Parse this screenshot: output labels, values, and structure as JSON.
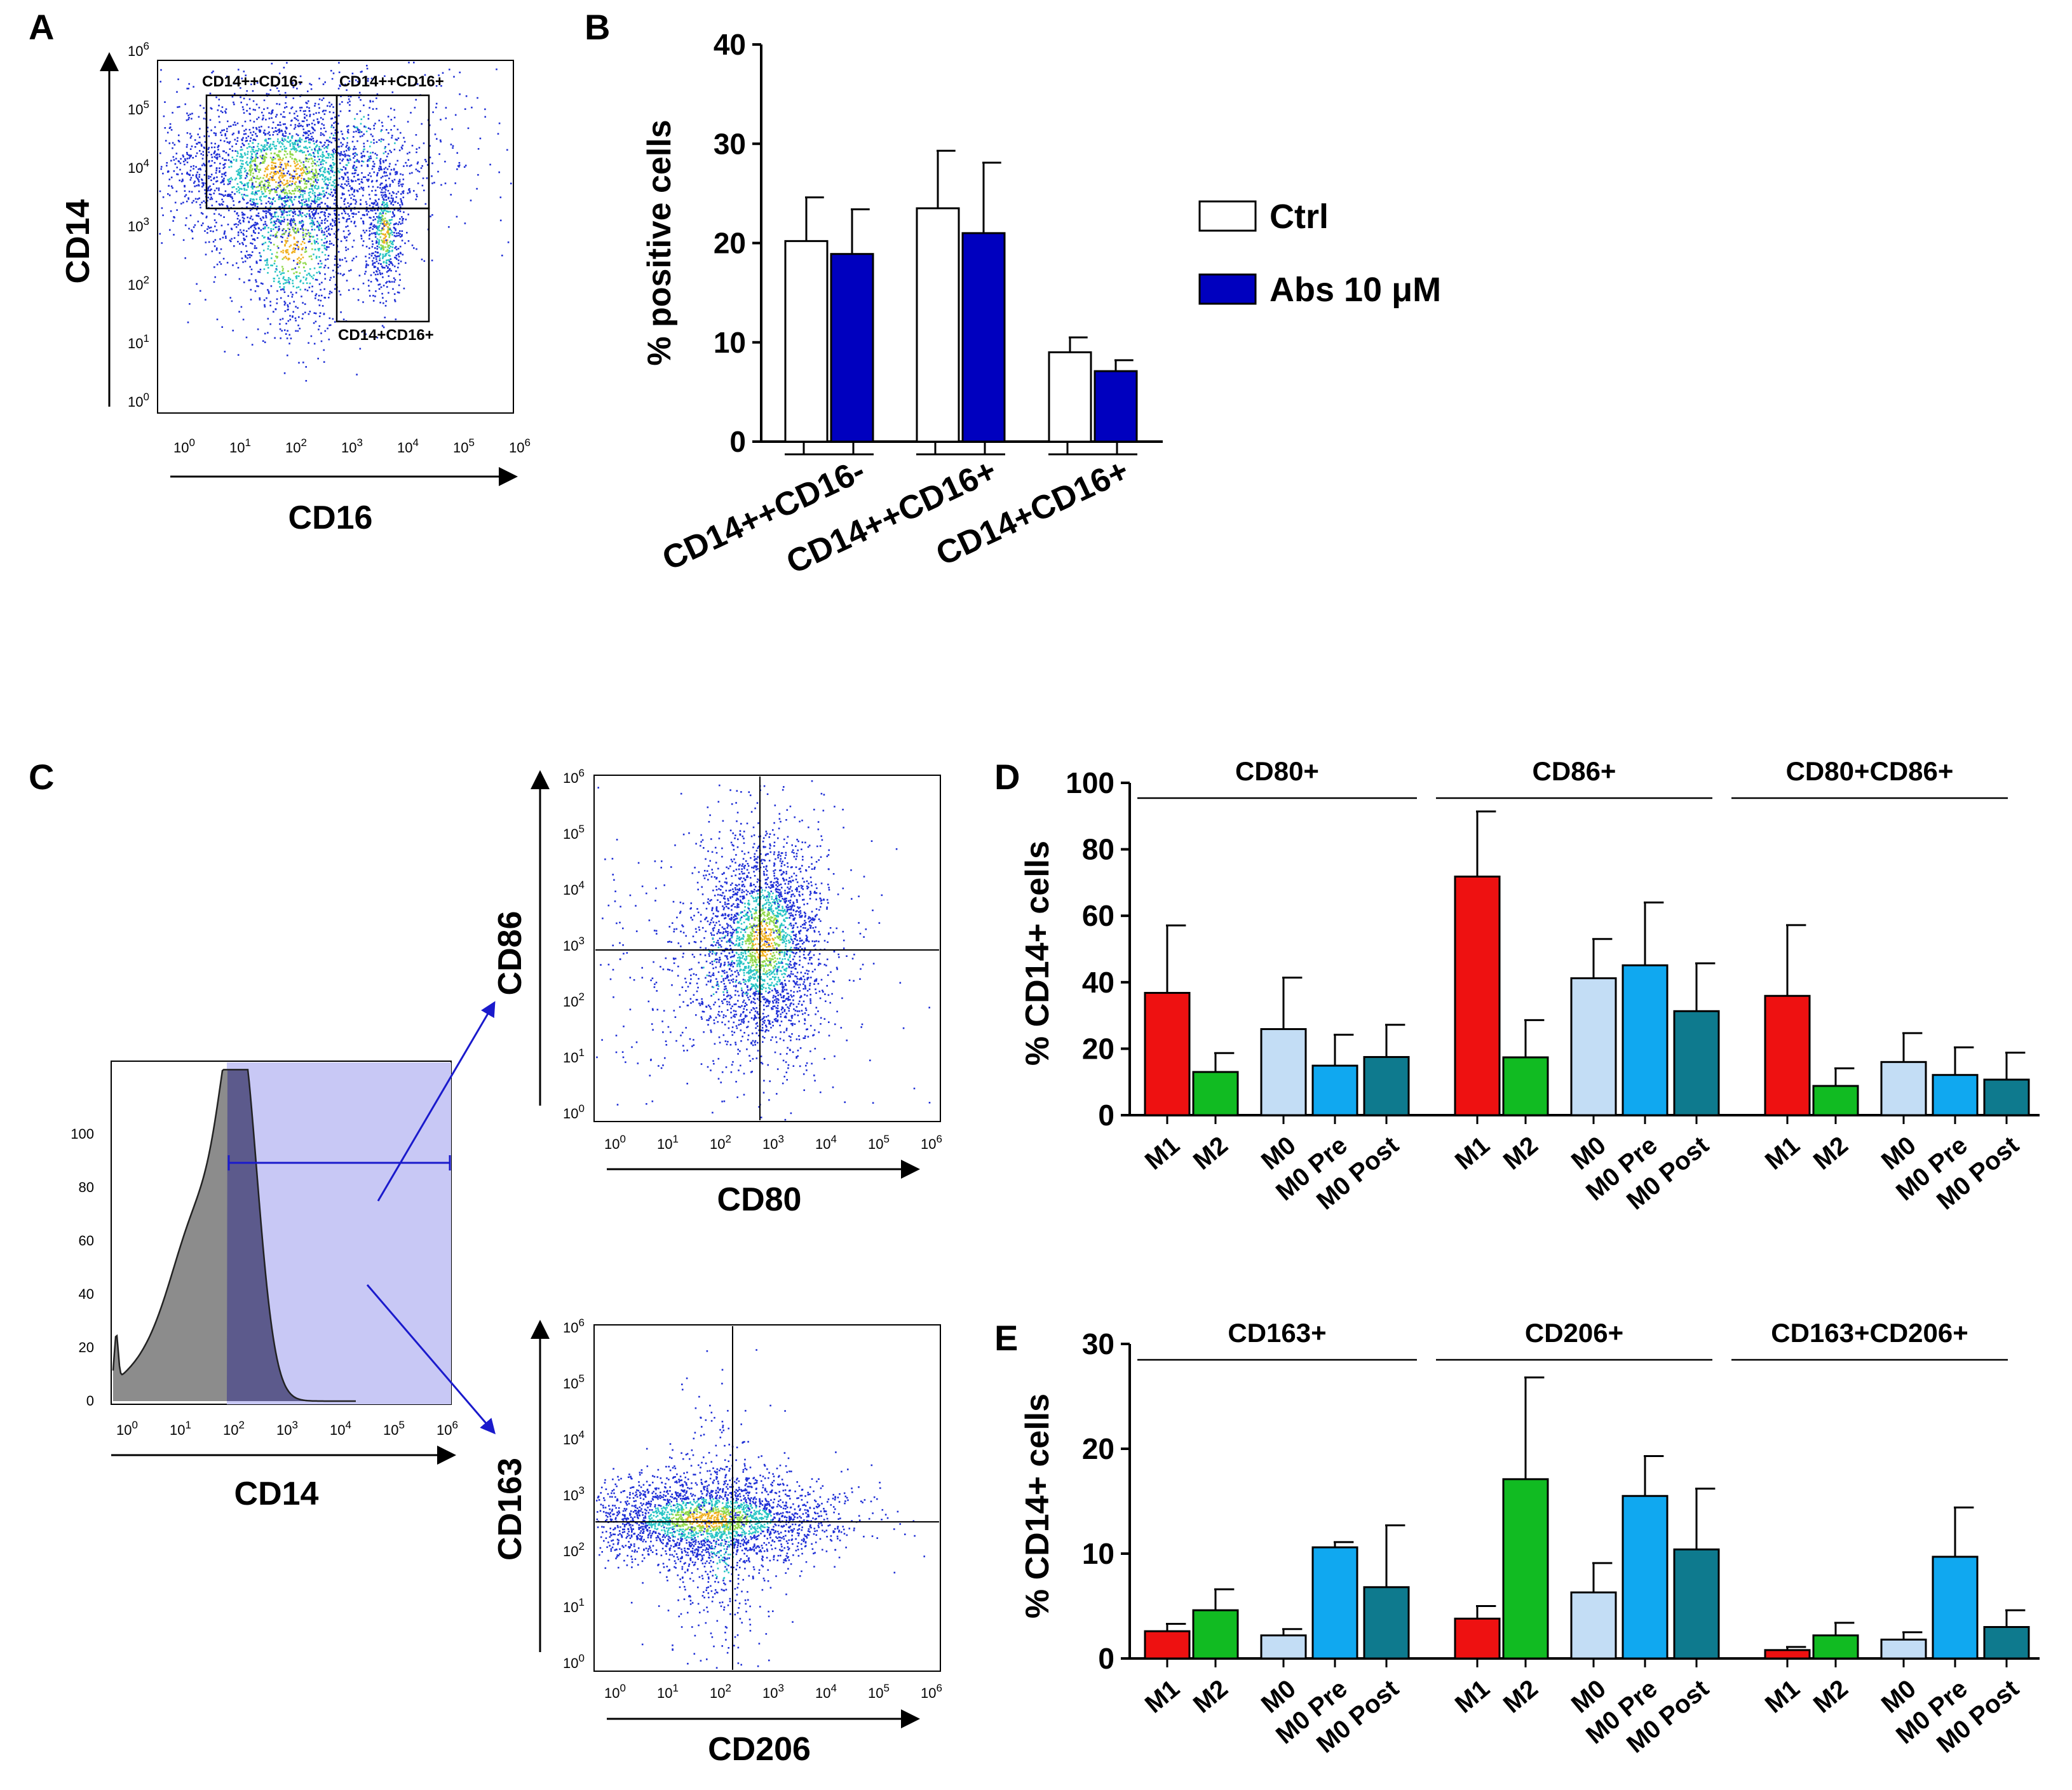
{
  "panels": {
    "a": "A",
    "b": "B",
    "c": "C",
    "d": "D",
    "e": "E"
  },
  "panel_a": {
    "y_label": "CD14",
    "x_label": "CD16",
    "x_ticks": [
      "10^0",
      "10^1",
      "10^2",
      "10^3",
      "10^4",
      "10^5",
      "10^6"
    ],
    "y_ticks": [
      "10^0",
      "10^1",
      "10^2",
      "10^3",
      "10^4",
      "10^5",
      "10^6"
    ],
    "gates": [
      "CD14++CD16-",
      "CD14++CD16+",
      "CD14+CD16+"
    ]
  },
  "panel_c": {
    "hist": {
      "x_label": "CD14",
      "x_ticks": [
        "10^0",
        "10^1",
        "10^2",
        "10^3",
        "10^4",
        "10^5",
        "10^6"
      ],
      "y_ticks": [
        "0",
        "20",
        "40",
        "60",
        "80",
        "100"
      ]
    },
    "top": {
      "x_label": "CD80",
      "y_label": "CD86",
      "x_ticks": [
        "10^0",
        "10^1",
        "10^2",
        "10^3",
        "10^4",
        "10^5",
        "10^6"
      ],
      "y_ticks": [
        "10^0",
        "10^1",
        "10^2",
        "10^3",
        "10^4",
        "10^5",
        "10^6"
      ]
    },
    "bottom": {
      "x_label": "CD206",
      "y_label": "CD163",
      "x_ticks": [
        "10^0",
        "10^1",
        "10^2",
        "10^3",
        "10^4",
        "10^5",
        "10^6"
      ],
      "y_ticks": [
        "10^0",
        "10^1",
        "10^2",
        "10^3",
        "10^4",
        "10^5",
        "10^6"
      ]
    }
  },
  "colors": {
    "ctrl": "#ffffff",
    "abs": "#0000bf",
    "M1": "#ee1111",
    "M2": "#11bb22",
    "M0": "#c3ddf5",
    "M0 Pre": "#10a8f0",
    "M0 Post": "#0e7a8e"
  },
  "chart_data": [
    {
      "id": "B",
      "type": "bar",
      "title": "",
      "ylabel": "% positive cells",
      "xlabel": "",
      "ylim": [
        0,
        40
      ],
      "yticks": [
        0,
        10,
        20,
        30,
        40
      ],
      "categories": [
        "CD14++CD16-",
        "CD14++CD16+",
        "CD14+CD16+"
      ],
      "series": [
        {
          "name": "Ctrl",
          "values": [
            20.2,
            23.5,
            9.0
          ],
          "errors": [
            4.4,
            5.8,
            1.5
          ]
        },
        {
          "name": "Abs 10 μM",
          "values": [
            18.9,
            21.0,
            7.1
          ],
          "errors": [
            4.5,
            7.1,
            1.1
          ]
        }
      ],
      "legend": "right"
    },
    {
      "id": "D",
      "type": "bar",
      "ylabel": "% CD14+ cells",
      "ylim": [
        0,
        100
      ],
      "yticks": [
        0,
        20,
        40,
        60,
        80,
        100
      ],
      "groups": [
        "CD80+",
        "CD86+",
        "CD80+CD86+"
      ],
      "categories": [
        "M1",
        "M2",
        "M0",
        "M0 Pre",
        "M0 Post"
      ],
      "values": [
        [
          36.8,
          13.0,
          25.9,
          14.9,
          17.5
        ],
        [
          71.8,
          17.4,
          41.2,
          45.1,
          31.3
        ],
        [
          35.9,
          8.8,
          16.0,
          12.1,
          10.7
        ]
      ],
      "errors": [
        [
          20.3,
          5.7,
          15.5,
          9.3,
          9.7
        ],
        [
          19.6,
          11.2,
          11.8,
          18.9,
          14.4
        ],
        [
          21.3,
          5.3,
          8.7,
          8.3,
          8.1
        ]
      ]
    },
    {
      "id": "E",
      "type": "bar",
      "ylabel": "% CD14+ cells",
      "ylim": [
        0,
        30
      ],
      "yticks": [
        0,
        10,
        20,
        30
      ],
      "groups": [
        "CD163+",
        "CD206+",
        "CD163+CD206+"
      ],
      "categories": [
        "M1",
        "M2",
        "M0",
        "M0 Pre",
        "M0 Post"
      ],
      "values": [
        [
          2.6,
          4.6,
          2.2,
          10.6,
          6.8
        ],
        [
          3.8,
          17.1,
          6.3,
          15.5,
          10.4
        ],
        [
          0.8,
          2.2,
          1.8,
          9.7,
          3.0
        ]
      ],
      "errors": [
        [
          0.7,
          2.0,
          0.6,
          0.5,
          5.9
        ],
        [
          1.2,
          9.7,
          2.8,
          3.8,
          5.8
        ],
        [
          0.3,
          1.2,
          0.7,
          4.7,
          1.6
        ]
      ]
    }
  ]
}
